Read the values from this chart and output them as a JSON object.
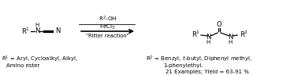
{
  "bg_color": "#ffffff",
  "fig_width": 3.78,
  "fig_height": 0.96,
  "dpi": 100,
  "reagent_top": "R$^{2}$-OH",
  "reagent_mid": "FeCl$_{3}$",
  "reagent_bot": "\"Ritter reaction\"",
  "r1_line1": "R$^{1}$ = Aryl, Cycloalkyl, Alkyl,",
  "r1_line2": "Amino ester",
  "r2_line1": "R$^{2}$ = Benzyl, $t$-butyl, Diphenyl methyl,",
  "r2_line2": "1-phenylethyl.",
  "examples": "21 Examples; Yield = 63-91 %"
}
